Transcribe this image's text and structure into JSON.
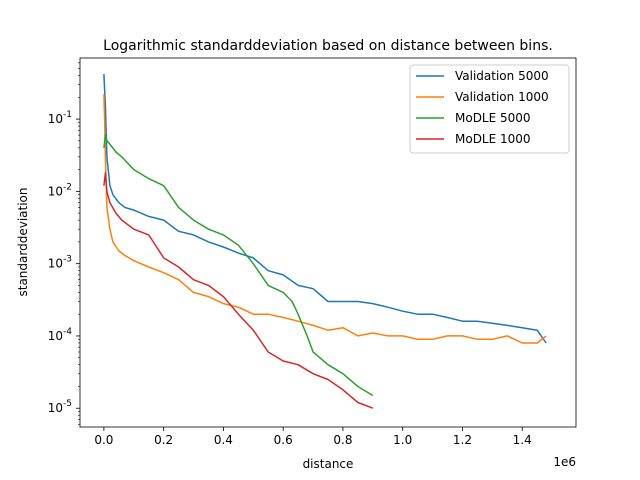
{
  "chart_data": {
    "type": "line",
    "title": "Logarithmic standarddeviation based on distance between bins.",
    "xlabel": "distance",
    "ylabel": "standarddeviation",
    "x_scale_label": "1e6",
    "y_scale": "log",
    "xlim": [
      -80000,
      1580000
    ],
    "ylim": [
      5.5e-06,
      0.7
    ],
    "xticks": [
      0,
      200000,
      400000,
      600000,
      800000,
      1000000,
      1200000,
      1400000
    ],
    "xtick_labels": [
      "0.0",
      "0.2",
      "0.4",
      "0.6",
      "0.8",
      "1.0",
      "1.2",
      "1.4"
    ],
    "yticks": [
      1e-05,
      0.0001,
      0.001,
      0.01,
      0.1
    ],
    "ytick_labels": [
      "10^-5",
      "10^-4",
      "10^-3",
      "10^-2",
      "10^-1"
    ],
    "grid": false,
    "legend_position": "top-right",
    "series": [
      {
        "name": "Validation 5000",
        "color": "#1f77b4",
        "x": [
          0,
          5000,
          10000,
          20000,
          30000,
          50000,
          70000,
          100000,
          150000,
          200000,
          250000,
          300000,
          350000,
          400000,
          450000,
          500000,
          550000,
          600000,
          650000,
          700000,
          750000,
          800000,
          850000,
          900000,
          950000,
          1000000,
          1050000,
          1100000,
          1150000,
          1200000,
          1250000,
          1300000,
          1350000,
          1400000,
          1450000,
          1480000
        ],
        "y": [
          0.42,
          0.15,
          0.03,
          0.012,
          0.009,
          0.007,
          0.006,
          0.0055,
          0.0045,
          0.004,
          0.0028,
          0.0025,
          0.002,
          0.0017,
          0.0014,
          0.0012,
          0.0008,
          0.0007,
          0.0005,
          0.00045,
          0.0003,
          0.0003,
          0.0003,
          0.00028,
          0.00025,
          0.00022,
          0.0002,
          0.0002,
          0.00018,
          0.00016,
          0.00016,
          0.00015,
          0.00014,
          0.00013,
          0.00012,
          8e-05
        ]
      },
      {
        "name": "Validation 1000",
        "color": "#ff7f0e",
        "x": [
          0,
          3000,
          5000,
          10000,
          20000,
          30000,
          50000,
          70000,
          100000,
          150000,
          200000,
          250000,
          300000,
          350000,
          400000,
          450000,
          500000,
          550000,
          600000,
          650000,
          700000,
          750000,
          800000,
          850000,
          900000,
          950000,
          1000000,
          1050000,
          1100000,
          1150000,
          1200000,
          1250000,
          1300000,
          1350000,
          1400000,
          1450000,
          1480000
        ],
        "y": [
          0.22,
          0.08,
          0.03,
          0.006,
          0.003,
          0.002,
          0.0015,
          0.0013,
          0.0011,
          0.0009,
          0.00075,
          0.0006,
          0.0004,
          0.00035,
          0.00028,
          0.00025,
          0.0002,
          0.0002,
          0.00018,
          0.00016,
          0.00014,
          0.00012,
          0.00013,
          0.0001,
          0.00011,
          0.0001,
          0.0001,
          9e-05,
          9e-05,
          0.0001,
          0.0001,
          9e-05,
          9e-05,
          0.0001,
          8e-05,
          8e-05,
          0.0001
        ]
      },
      {
        "name": "MoDLE 5000",
        "color": "#2ca02c",
        "x": [
          0,
          5000,
          10000,
          20000,
          40000,
          60000,
          100000,
          150000,
          200000,
          250000,
          300000,
          350000,
          400000,
          450000,
          500000,
          550000,
          600000,
          630000,
          650000,
          680000,
          700000,
          750000,
          800000,
          850000,
          900000
        ],
        "y": [
          0.04,
          0.06,
          0.05,
          0.045,
          0.035,
          0.03,
          0.02,
          0.015,
          0.012,
          0.006,
          0.004,
          0.003,
          0.0025,
          0.0018,
          0.001,
          0.0005,
          0.0004,
          0.0003,
          0.0002,
          0.0001,
          6e-05,
          4e-05,
          3e-05,
          2e-05,
          1.5e-05
        ]
      },
      {
        "name": "MoDLE 1000",
        "color": "#d62728",
        "x": [
          0,
          5000,
          10000,
          20000,
          40000,
          60000,
          100000,
          150000,
          200000,
          250000,
          300000,
          350000,
          400000,
          450000,
          500000,
          550000,
          600000,
          650000,
          700000,
          750000,
          800000,
          850000,
          900000
        ],
        "y": [
          0.012,
          0.018,
          0.01,
          0.007,
          0.005,
          0.004,
          0.003,
          0.0025,
          0.0012,
          0.0009,
          0.0006,
          0.0005,
          0.00035,
          0.0002,
          0.00012,
          6e-05,
          4.5e-05,
          4e-05,
          3e-05,
          2.5e-05,
          1.8e-05,
          1.2e-05,
          1e-05
        ]
      }
    ]
  }
}
